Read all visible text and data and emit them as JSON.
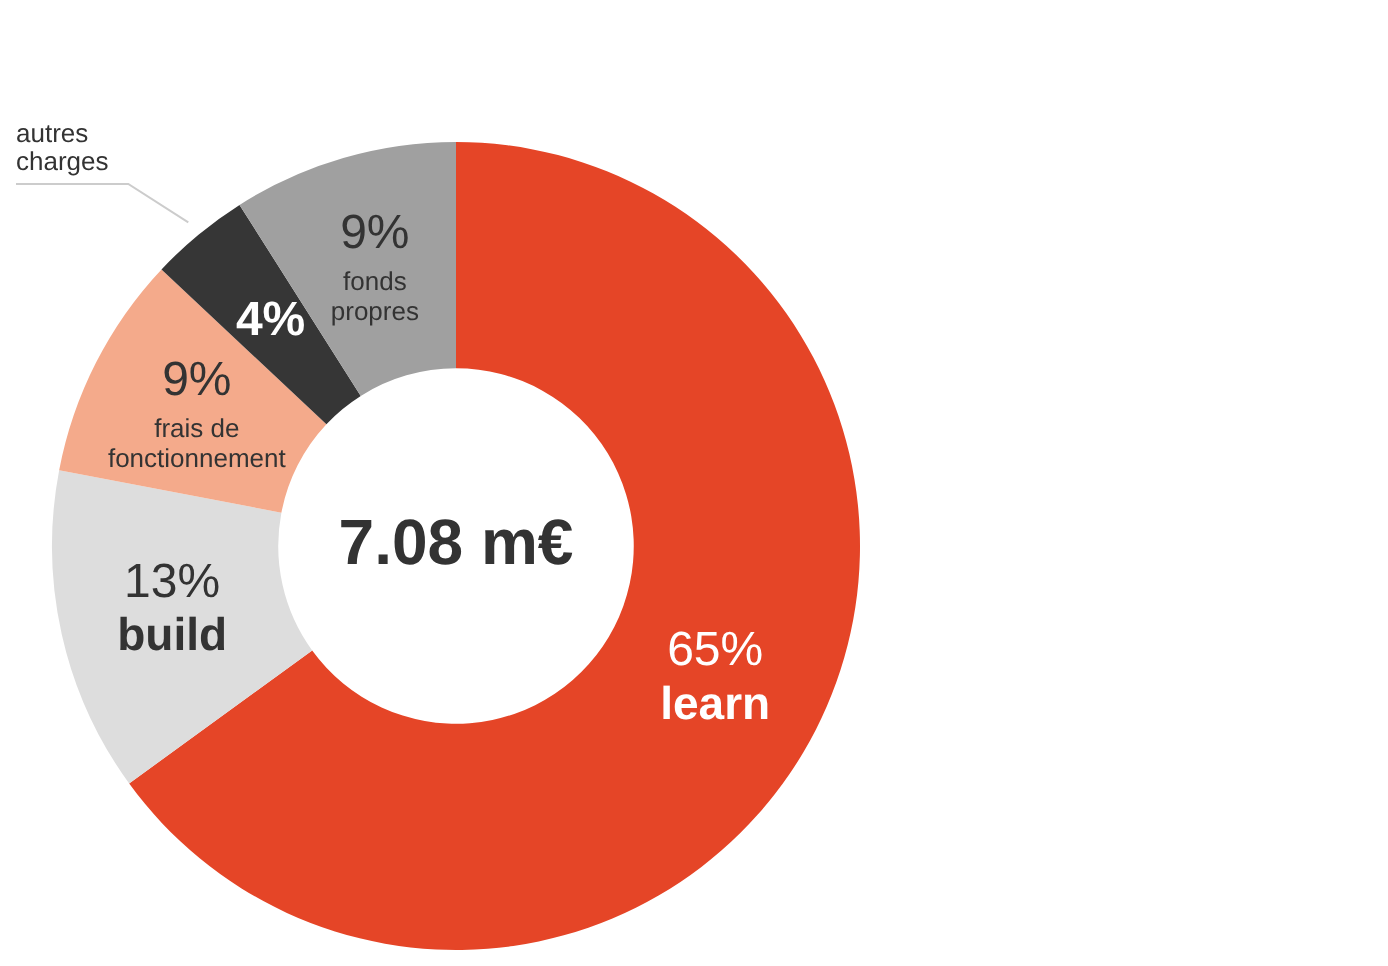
{
  "chart_data": {
    "type": "donut",
    "categories": [
      "learn",
      "build",
      "frais de fonctionnement",
      "autres charges",
      "fonds propres"
    ],
    "values": [
      65,
      13,
      9,
      4,
      9
    ],
    "value_labels": [
      "65%",
      "13%",
      "9%",
      "4%",
      "9%"
    ],
    "colors": [
      "#e54527",
      "#dddddd",
      "#f4aa8b",
      "#363636",
      "#a0a0a0"
    ],
    "annotations": [
      "7.08 m€"
    ],
    "legend": false
  }
}
